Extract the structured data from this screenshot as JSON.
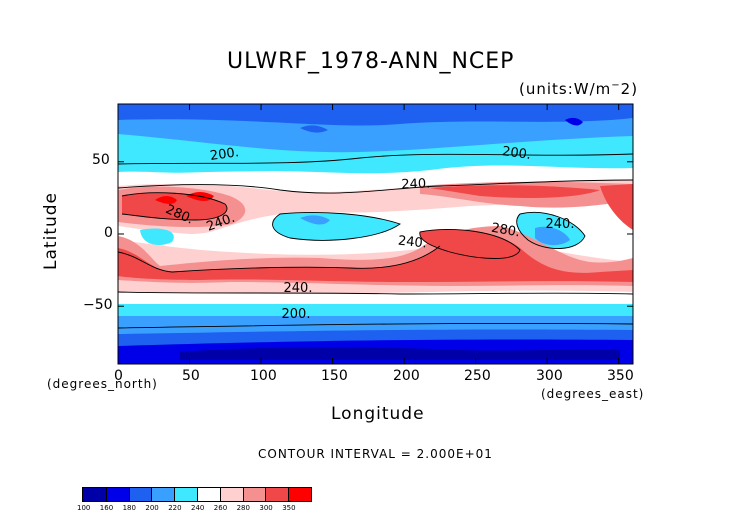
{
  "chart_data": {
    "type": "heatmap",
    "title": "ULWRF_1978-ANN_NCEP",
    "units_note": "(units:W/m^2)",
    "xlabel": "Longitude",
    "ylabel": "Latitude",
    "x_note": "(degrees_east)",
    "y_note": "(degrees_north)",
    "xlim": [
      0,
      360
    ],
    "ylim": [
      -90,
      90
    ],
    "x_ticks": [
      "0",
      "50",
      "100",
      "150",
      "200",
      "250",
      "300",
      "350"
    ],
    "y_ticks": [
      "50",
      "0",
      "−50"
    ],
    "contour_interval": "CONTOUR INTERVAL = 2.000E+01",
    "contour_labels": [
      "200.",
      "200.",
      "240.",
      "280.",
      "240.",
      "280.",
      "240.",
      "240.",
      "200.",
      "240."
    ],
    "colorbar": {
      "levels": [
        "100",
        "160",
        "180",
        "200",
        "220",
        "240",
        "260",
        "280",
        "300",
        "350"
      ],
      "colors": [
        "#0000a8",
        "#0000e8",
        "#1e60f0",
        "#3aa0ff",
        "#40e8ff",
        "#ffffff",
        "#ffd0d0",
        "#f59090",
        "#f04848",
        "#ff0000"
      ]
    }
  }
}
